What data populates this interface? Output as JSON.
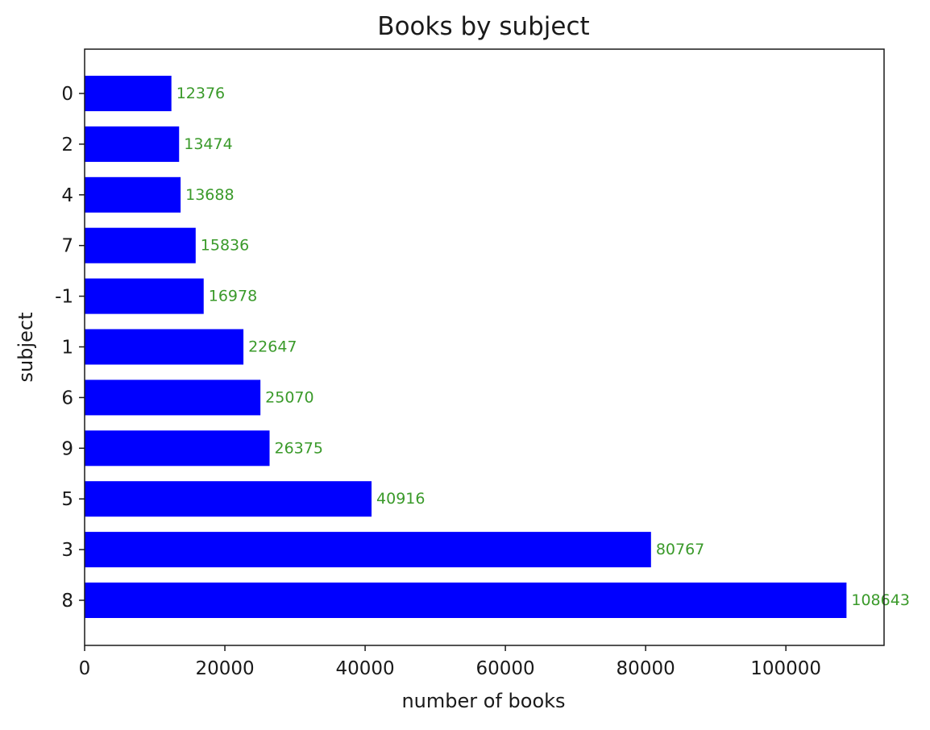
{
  "chart_data": {
    "type": "bar",
    "orientation": "horizontal",
    "title": "Books by subject",
    "xlabel": "number of books",
    "ylabel": "subject",
    "categories": [
      "0",
      "2",
      "4",
      "7",
      "-1",
      "1",
      "6",
      "9",
      "5",
      "3",
      "8"
    ],
    "values": [
      12376,
      13474,
      13688,
      15836,
      16978,
      22647,
      25070,
      26375,
      40916,
      80767,
      108643
    ],
    "xlim": [
      0,
      114000
    ],
    "xticks": [
      0,
      20000,
      40000,
      60000,
      80000,
      100000
    ],
    "bar_color": "#0000ff",
    "label_color": "#3a9a2a",
    "grid": false
  }
}
